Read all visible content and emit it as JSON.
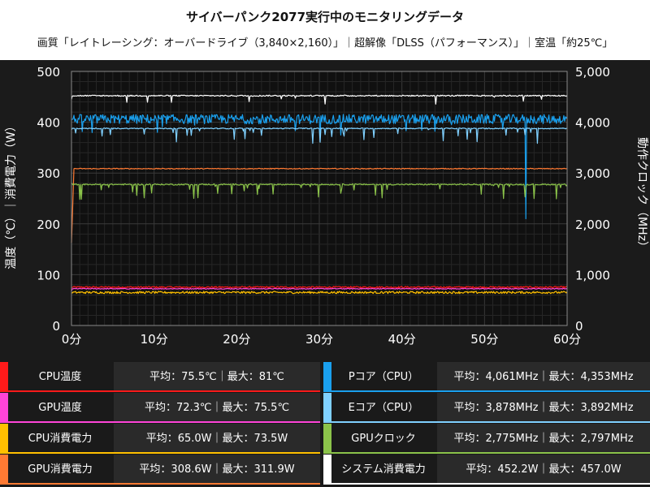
{
  "title": "サイバーパンク2077実行中のモニタリングデータ",
  "subtitle": "画質「レイトレーシング：オーバードライブ（3,840×2,160）」｜超解像「DLSS（パフォーマンス）」｜室温「約25℃」",
  "chart_data": {
    "type": "line",
    "title": "サイバーパンク2077実行中のモニタリングデータ",
    "xlabel": "",
    "ylabel_left": "温度（℃）｜消費電力（W）",
    "ylabel_right": "動作クロック（MHz）",
    "xlim": [
      0,
      60
    ],
    "ylim_left": [
      0,
      500
    ],
    "ylim_right": [
      0,
      5000
    ],
    "x_ticks": [
      "0分",
      "10分",
      "20分",
      "30分",
      "40分",
      "50分",
      "60分"
    ],
    "y_ticks_left": [
      "0",
      "100",
      "200",
      "300",
      "400",
      "500"
    ],
    "y_ticks_right": [
      "0",
      "1,000",
      "2,000",
      "3,000",
      "4,000",
      "5,000"
    ],
    "grid": true,
    "series": [
      {
        "name": "CPU温度",
        "axis": "left",
        "color": "#ff1a1a",
        "avg": 75.5,
        "max": 81,
        "start": 75
      },
      {
        "name": "GPU温度",
        "axis": "left",
        "color": "#ff44d8",
        "avg": 72.3,
        "max": 75.5,
        "start": 68
      },
      {
        "name": "CPU消費電力",
        "axis": "left",
        "color": "#ffc000",
        "avg": 65.0,
        "max": 73.5,
        "start": 65
      },
      {
        "name": "GPU消費電力",
        "axis": "left",
        "color": "#ff7a33",
        "avg": 308.6,
        "max": 311.9,
        "start": 163
      },
      {
        "name": "Pコア（CPU）",
        "axis": "right",
        "color": "#1aa0ee",
        "avg": 4061,
        "max": 4353,
        "start": 4050
      },
      {
        "name": "Eコア（CPU）",
        "axis": "right",
        "color": "#7fd0ff",
        "avg": 3878,
        "max": 3892,
        "start": 3850
      },
      {
        "name": "GPUクロック",
        "axis": "right",
        "color": "#8bc34a",
        "avg": 2775,
        "max": 2797,
        "start": 2797
      },
      {
        "name": "システム消費電力",
        "axis": "left",
        "color": "#ffffff",
        "avg": 452.2,
        "max": 457.0,
        "start": 445
      }
    ]
  },
  "legend": [
    {
      "name": "CPU温度",
      "stats": "平均：75.5℃｜最大：81℃"
    },
    {
      "name": "GPU温度",
      "stats": "平均：72.3℃｜最大：75.5℃"
    },
    {
      "name": "CPU消費電力",
      "stats": "平均：65.0W｜最大：73.5W"
    },
    {
      "name": "GPU消費電力",
      "stats": "平均：308.6W｜最大：311.9W"
    },
    {
      "name": "Pコア（CPU）",
      "stats": "平均：4,061MHz｜最大：4,353MHz"
    },
    {
      "name": "Eコア（CPU）",
      "stats": "平均：3,878MHz｜最大：3,892MHz"
    },
    {
      "name": "GPUクロック",
      "stats": "平均：2,775MHz｜最大：2,797MHz"
    },
    {
      "name": "システム消費電力",
      "stats": "平均：452.2W｜最大：457.0W"
    }
  ]
}
